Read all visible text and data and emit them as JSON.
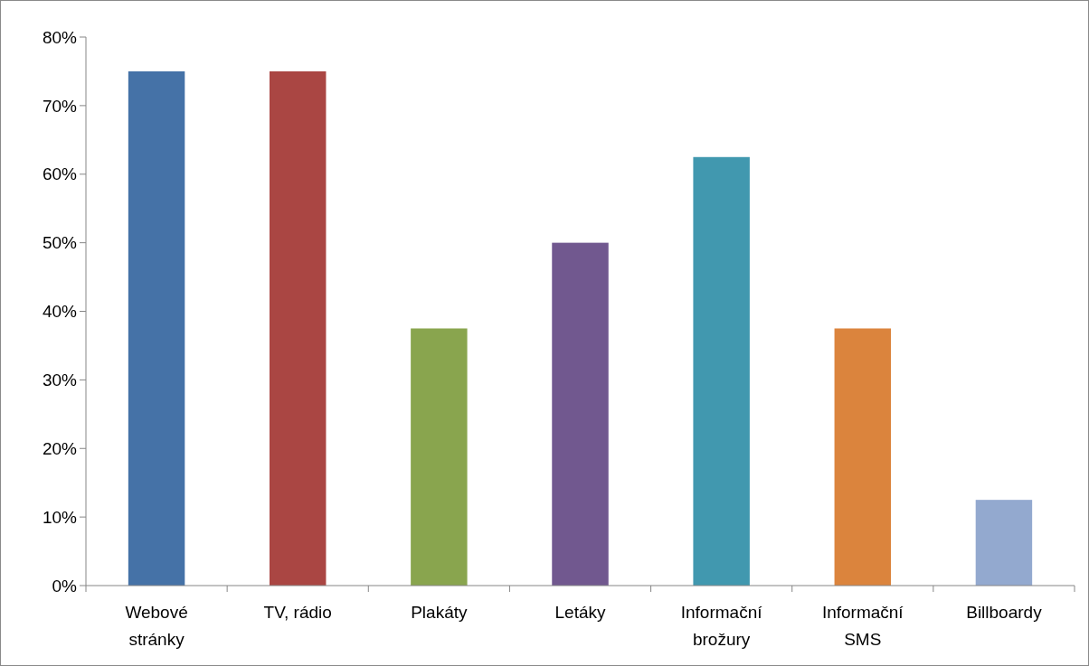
{
  "chart_data": {
    "type": "bar",
    "categories": [
      "Webové stránky",
      "TV, rádio",
      "Plakáty",
      "Letáky",
      "Informační brožury",
      "Informační SMS",
      "Billboardy"
    ],
    "values": [
      75,
      75,
      37.5,
      50,
      62.5,
      37.5,
      12.5
    ],
    "colors": [
      "#4572a7",
      "#aa4643",
      "#89a54e",
      "#71588f",
      "#4198af",
      "#db843d",
      "#93a9cf"
    ],
    "ylim": [
      0,
      80
    ],
    "yticks": [
      {
        "value": 0,
        "label": "0%"
      },
      {
        "value": 10,
        "label": "10%"
      },
      {
        "value": 20,
        "label": "20%"
      },
      {
        "value": 30,
        "label": "30%"
      },
      {
        "value": 40,
        "label": "40%"
      },
      {
        "value": 50,
        "label": "50%"
      },
      {
        "value": 60,
        "label": "60%"
      },
      {
        "value": 70,
        "label": "70%"
      },
      {
        "value": 80,
        "label": "80%"
      }
    ],
    "grid": false
  }
}
